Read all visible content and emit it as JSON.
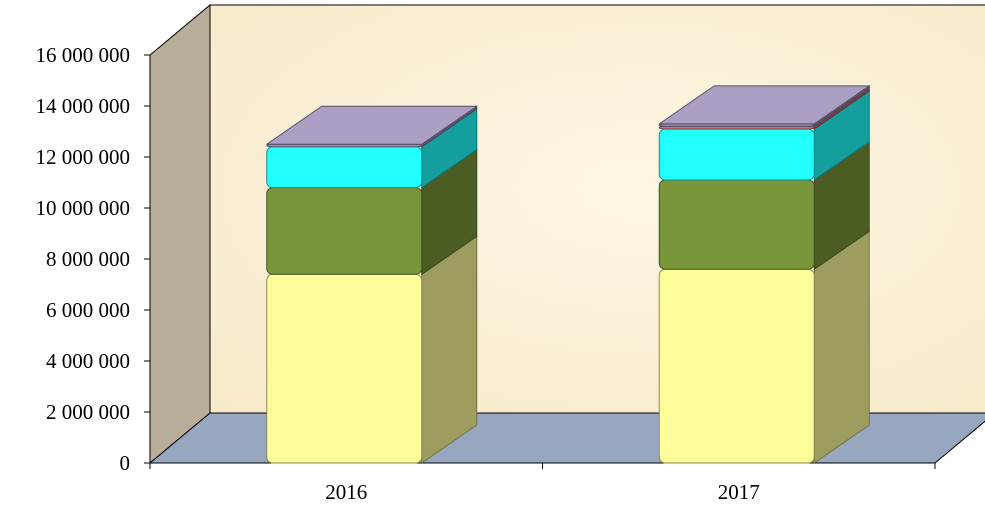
{
  "chart_data": {
    "type": "bar",
    "stacked": true,
    "three_d": true,
    "categories": [
      "2016",
      "2017"
    ],
    "series": [
      {
        "color": "#fdfd9a",
        "values": [
          7400000,
          7600000
        ]
      },
      {
        "color": "#7a963a",
        "values": [
          3400000,
          3500000
        ]
      },
      {
        "color": "#22ffff",
        "values": [
          1600000,
          2000000
        ]
      },
      {
        "color": "#d97070",
        "values": [
          0,
          100000
        ]
      },
      {
        "color": "#9c8eb8",
        "values": [
          100000,
          100000
        ]
      }
    ],
    "ylim": [
      0,
      16000000
    ],
    "yticks": [
      {
        "value": 0,
        "label": "0"
      },
      {
        "value": 2000000,
        "label": "2 000 000"
      },
      {
        "value": 4000000,
        "label": "4 000 000"
      },
      {
        "value": 6000000,
        "label": "6 000 000"
      },
      {
        "value": 8000000,
        "label": "8 000 000"
      },
      {
        "value": 10000000,
        "label": "10 000 000"
      },
      {
        "value": 12000000,
        "label": "12 000 000"
      },
      {
        "value": 14000000,
        "label": "14 000 000"
      },
      {
        "value": 16000000,
        "label": "16 000 000"
      }
    ],
    "legend": "none",
    "grid": false,
    "colors": {
      "back_wall": "#fbf1d8",
      "side_wall": "#b7ad98",
      "floor": "#97a7c0"
    }
  }
}
